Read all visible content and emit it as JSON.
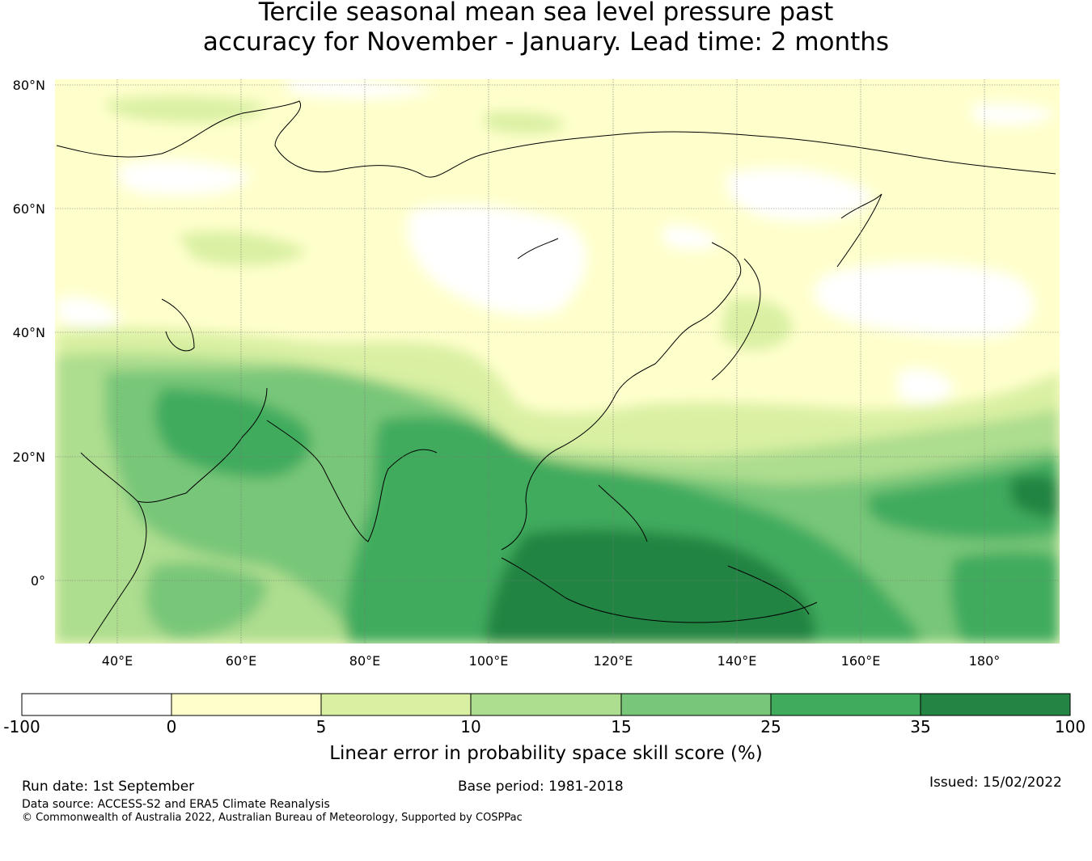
{
  "title": {
    "line1": "Tercile seasonal mean sea level pressure past",
    "line2": "accuracy for November - January. Lead time: 2 months"
  },
  "map": {
    "lat_ticks": [
      "80°N",
      "60°N",
      "40°N",
      "20°N",
      "0°"
    ],
    "lon_ticks": [
      "40°E",
      "60°E",
      "80°E",
      "100°E",
      "120°E",
      "140°E",
      "160°E",
      "180°"
    ],
    "extent": {
      "lon_min": 30,
      "lon_max": 192,
      "lat_min": -10,
      "lat_max": 80
    }
  },
  "colorbar": {
    "ticks": [
      "-100",
      "0",
      "5",
      "10",
      "15",
      "25",
      "35",
      "100"
    ],
    "colors": [
      "#ffffff",
      "#ffffcc",
      "#d9f0a3",
      "#addd8e",
      "#78c679",
      "#41ab5d",
      "#238443"
    ],
    "label": "Linear error in probability space skill score (%)"
  },
  "footer": {
    "run_date": "Run date: 1st September",
    "base_period": "Base period: 1981-2018",
    "issued": "Issued: 15/02/2022",
    "data_source": "Data source: ACCESS-S2 and ERA5 Climate Reanalysis",
    "copyright": "© Commonwealth of Australia 2022, Australian Bureau of Meteorology, Supported by COSPPac"
  }
}
